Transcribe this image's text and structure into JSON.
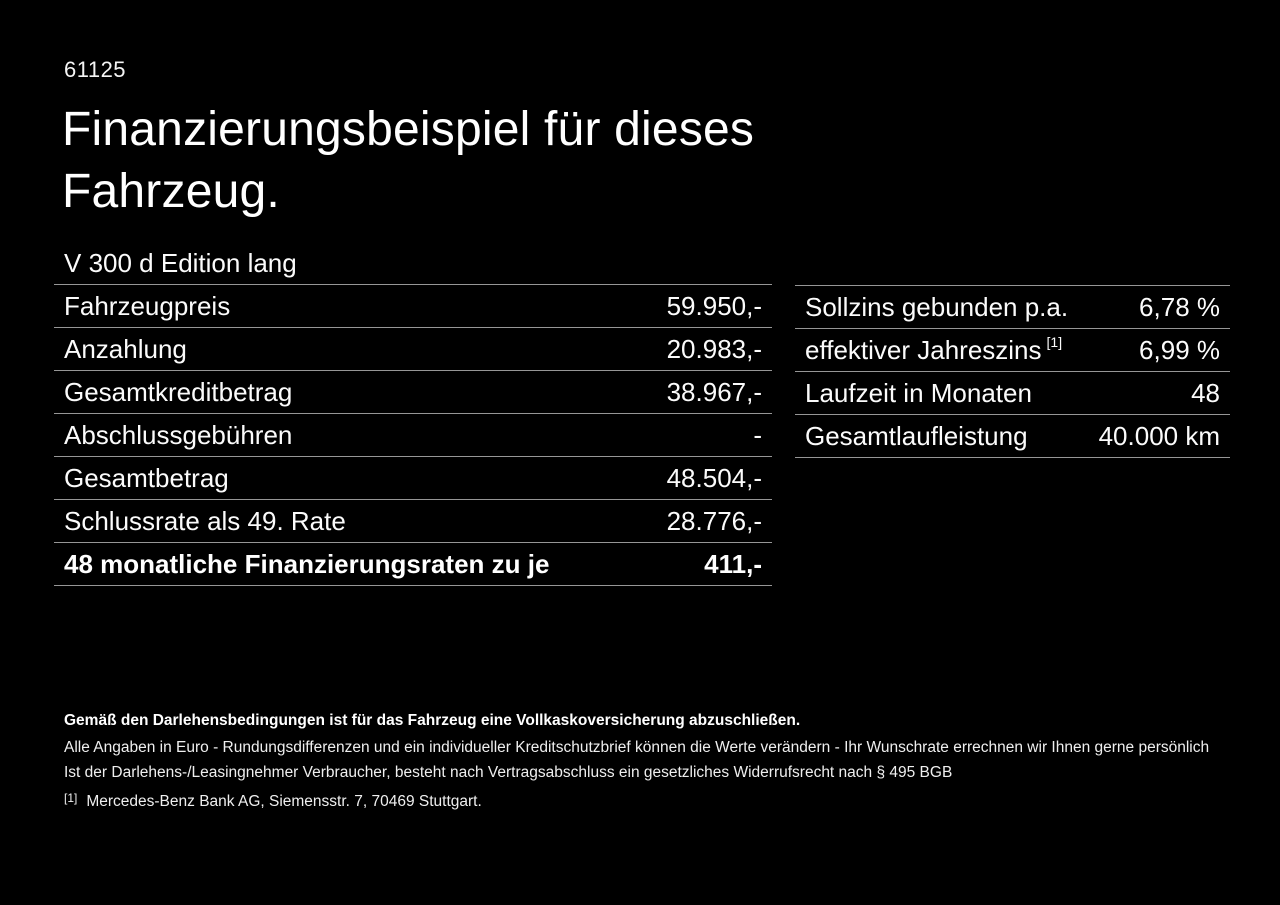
{
  "doc_number": "61125",
  "title": "Finanzierungsbeispiel für dieses Fahrzeug.",
  "model_name": "V 300 d Edition lang",
  "finance_table": {
    "rows": [
      {
        "label": "Fahrzeugpreis",
        "value": "59.950,-"
      },
      {
        "label": "Anzahlung",
        "value": "20.983,-"
      },
      {
        "label": "Gesamtkreditbetrag",
        "value": "38.967,-"
      },
      {
        "label": "Abschlussgebühren",
        "value": "-"
      },
      {
        "label": "Gesamtbetrag",
        "value": "48.504,-"
      },
      {
        "label": "Schlussrate als 49. Rate",
        "value": "28.776,-"
      },
      {
        "label": "48 monatliche Finanzierungsraten zu je",
        "value": "411,-"
      }
    ]
  },
  "conditions_table": {
    "rows": [
      {
        "label": "Sollzins gebunden p.a.",
        "sup": "",
        "value": "6,78 %"
      },
      {
        "label": "effektiver Jahreszins",
        "sup": "[1]",
        "value": "6,99 %"
      },
      {
        "label": "Laufzeit in Monaten",
        "sup": "",
        "value": "48"
      },
      {
        "label": "Gesamtlaufleistung",
        "sup": "",
        "value": "40.000 km"
      }
    ]
  },
  "footer": {
    "insurance_note": "Gemäß den Darlehensbedingungen ist für das Fahrzeug eine Vollkaskoversicherung abzuschließen.",
    "disclaimer": "Alle Angaben in Euro - Rundungsdifferenzen und ein individueller Kreditschutzbrief können die Werte verändern - Ihr Wunschrate errechnen wir Ihnen gerne persönlich",
    "withdrawal_note": "Ist der Darlehens-/Leasingnehmer Verbraucher, besteht nach Vertragsabschluss ein gesetzliches Widerrufsrecht nach § 495 BGB",
    "footnote_marker": "[1]",
    "footnote_text": "Mercedes-Benz Bank AG, Siemensstr. 7, 70469 Stuttgart."
  },
  "colors": {
    "background": "#000000",
    "text": "#ffffff",
    "divider": "#969696"
  }
}
